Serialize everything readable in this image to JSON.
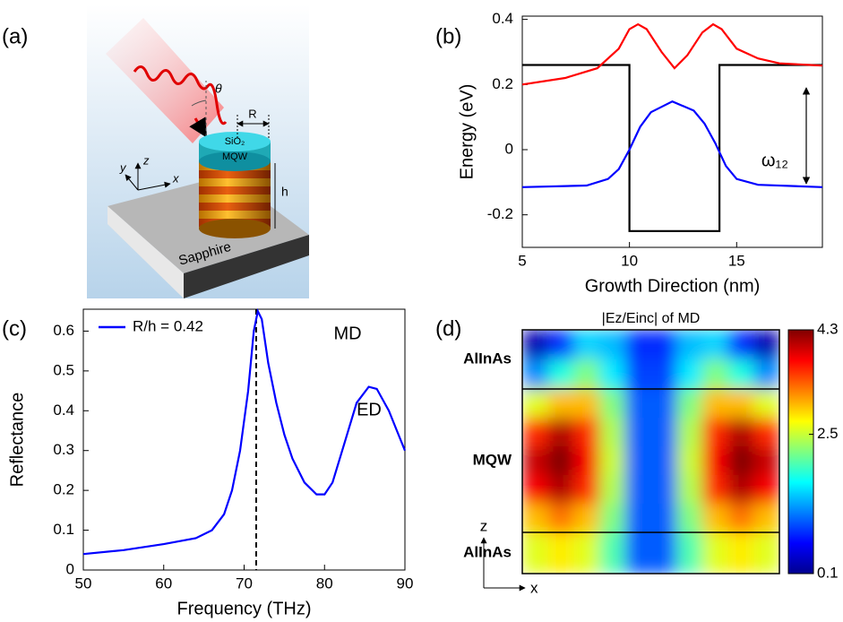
{
  "illustration": {
    "panel_label": "(a)",
    "substrate": "Sapphire",
    "cap": "SiO₂",
    "layer": "MQW",
    "radius": "R",
    "height": "h",
    "angle": "θ",
    "axis_x": "x",
    "axis_y": "y",
    "axis_z": "z"
  },
  "chart_data": [
    {
      "type": "line",
      "panel_label": "(b)",
      "xlabel": "Growth Direction (nm)",
      "ylabel": "Energy (eV)",
      "annotation": "ω₁₂",
      "xlim": [
        5,
        19
      ],
      "xticks": [
        5,
        10,
        15
      ],
      "ylim": [
        -0.3,
        0.41
      ],
      "yticks": [
        -0.2,
        0,
        0.2,
        0.4
      ],
      "series": [
        {
          "color": "#000000",
          "x": [
            5,
            10,
            10,
            14.2,
            14.2,
            19
          ],
          "values": [
            0.26,
            0.26,
            -0.25,
            -0.25,
            0.26,
            0.26
          ]
        },
        {
          "color": "#ff0000",
          "x": [
            5,
            7,
            8.5,
            9.5,
            10,
            10.4,
            10.8,
            11.5,
            12.1,
            12.7,
            13.4,
            13.9,
            14.3,
            15,
            16,
            17,
            19
          ],
          "values": [
            0.2,
            0.22,
            0.25,
            0.31,
            0.37,
            0.385,
            0.37,
            0.3,
            0.25,
            0.29,
            0.36,
            0.385,
            0.37,
            0.31,
            0.28,
            0.265,
            0.258
          ]
        },
        {
          "color": "#0000ff",
          "x": [
            5,
            8,
            9,
            9.5,
            10,
            10.5,
            11,
            12,
            13,
            13.5,
            14,
            14.5,
            15,
            16,
            19
          ],
          "values": [
            -0.115,
            -0.11,
            -0.09,
            -0.06,
            0.0,
            0.07,
            0.115,
            0.148,
            0.12,
            0.08,
            0.02,
            -0.05,
            -0.09,
            -0.108,
            -0.115
          ]
        }
      ]
    },
    {
      "type": "line",
      "panel_label": "(c)",
      "xlabel": "Frequency (THz)",
      "ylabel": "Reflectance",
      "xlim": [
        50,
        90
      ],
      "xticks": [
        50,
        60,
        70,
        80,
        90
      ],
      "ylim": [
        0,
        0.655
      ],
      "yticks": [
        0,
        0.1,
        0.2,
        0.3,
        0.4,
        0.5,
        0.6
      ],
      "vline": 71.5,
      "annotations": [
        "MD",
        "ED"
      ],
      "legend": "upper left",
      "series": [
        {
          "name": "R/h = 0.42",
          "color": "#0000ff",
          "x": [
            50,
            55,
            60,
            64,
            66,
            67.5,
            68.5,
            69.5,
            70.5,
            71.2,
            71.7,
            72.2,
            73,
            74,
            75,
            76,
            77.5,
            79,
            80,
            81,
            82.5,
            84,
            85.5,
            86.5,
            88,
            89,
            90
          ],
          "values": [
            0.04,
            0.05,
            0.065,
            0.08,
            0.1,
            0.14,
            0.2,
            0.3,
            0.45,
            0.6,
            0.65,
            0.63,
            0.52,
            0.42,
            0.34,
            0.28,
            0.22,
            0.19,
            0.19,
            0.22,
            0.32,
            0.42,
            0.46,
            0.455,
            0.4,
            0.35,
            0.3
          ]
        }
      ]
    },
    {
      "type": "heatmap",
      "panel_label": "(d)",
      "title": "|Ez/Einc| of MD",
      "colormap": "jet",
      "regions": [
        "AlInAs",
        "MQW",
        "AlInAs"
      ],
      "xlabel": "x",
      "ylabel": "z",
      "clim": [
        0.1,
        4.3
      ],
      "cticks": [
        0.1,
        2.5,
        4.3
      ],
      "z": [
        [
          0.3,
          0.8,
          1.5,
          1.4,
          0.8,
          0.8,
          1.4,
          1.5,
          0.8,
          0.3
        ],
        [
          1.2,
          1.8,
          2.2,
          1.6,
          0.9,
          0.9,
          1.6,
          2.2,
          1.8,
          1.2
        ],
        [
          2.6,
          3.0,
          3.0,
          2.2,
          1.0,
          1.0,
          2.2,
          3.0,
          3.0,
          2.6
        ],
        [
          3.6,
          4.1,
          3.6,
          2.4,
          1.0,
          1.0,
          2.4,
          3.6,
          4.1,
          3.6
        ],
        [
          4.0,
          4.3,
          3.8,
          2.5,
          1.0,
          1.0,
          2.5,
          3.8,
          4.3,
          4.0
        ],
        [
          3.8,
          4.1,
          3.6,
          2.4,
          1.0,
          1.0,
          2.4,
          3.6,
          4.1,
          3.8
        ],
        [
          3.0,
          3.3,
          3.0,
          2.2,
          1.0,
          1.0,
          2.2,
          3.0,
          3.3,
          3.0
        ],
        [
          2.6,
          2.8,
          2.6,
          2.0,
          1.0,
          1.0,
          2.0,
          2.6,
          2.8,
          2.6
        ]
      ]
    }
  ]
}
